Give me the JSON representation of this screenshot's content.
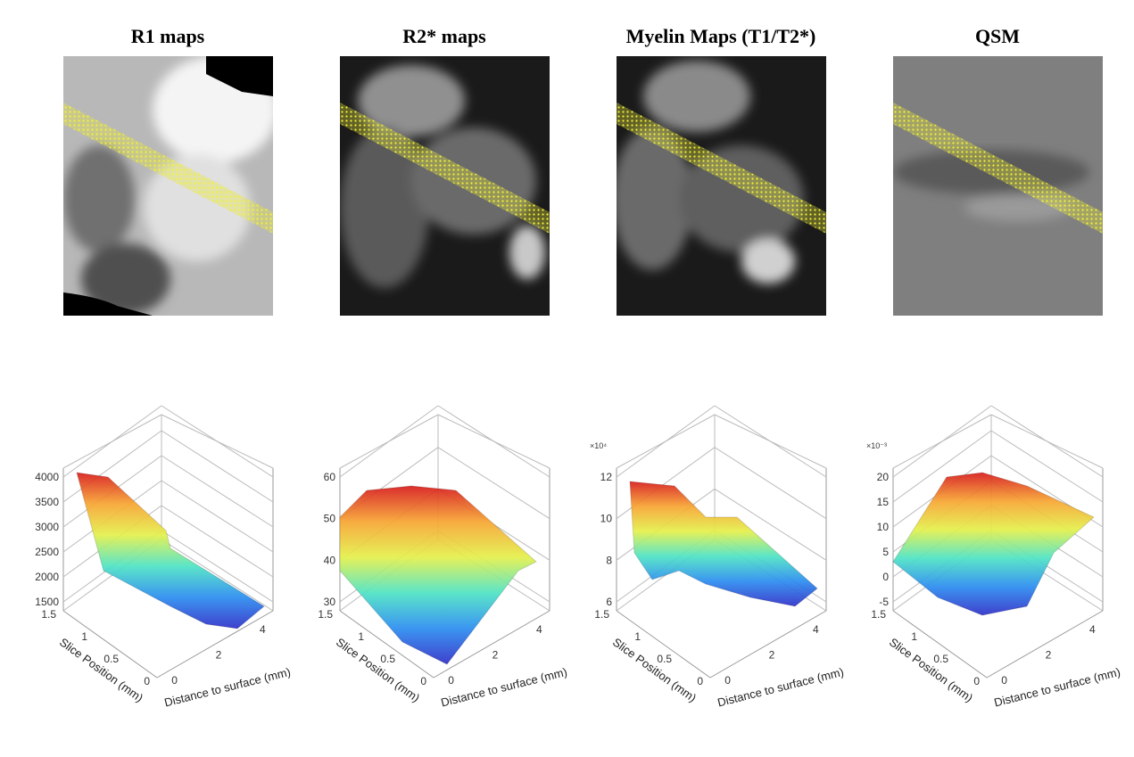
{
  "panels": [
    {
      "title": "R1 maps",
      "plot": {
        "zticks": [
          "4000",
          "3500",
          "3000",
          "2500",
          "2000",
          "1500"
        ],
        "exponent": null,
        "yticks": [
          "1.5",
          "1",
          "0.5",
          "0"
        ],
        "xticks": [
          "0",
          "2",
          "4"
        ],
        "ylabel": "Slice Position (mm)",
        "xlabel": "Distance to surface (mm)"
      }
    },
    {
      "title": "R2* maps",
      "plot": {
        "zticks": [
          "60",
          "50",
          "40",
          "30"
        ],
        "exponent": null,
        "yticks": [
          "1.5",
          "1",
          "0.5",
          "0"
        ],
        "xticks": [
          "0",
          "2",
          "4"
        ],
        "ylabel": "Slice Position (mm)",
        "xlabel": "Distance to surface (mm)"
      }
    },
    {
      "title": "Myelin Maps (T1/T2*)",
      "plot": {
        "zticks": [
          "12",
          "10",
          "8",
          "6"
        ],
        "exponent": "×10⁴",
        "yticks": [
          "1.5",
          "1",
          "0.5",
          "0"
        ],
        "xticks": [
          "0",
          "2",
          "4"
        ],
        "ylabel": "Slice Position (mm)",
        "xlabel": "Distance to surface (mm)"
      }
    },
    {
      "title": "QSM",
      "plot": {
        "zticks": [
          "20",
          "15",
          "10",
          "5",
          "0",
          "-5"
        ],
        "exponent": "×10⁻³",
        "yticks": [
          "1.5",
          "1",
          "0.5",
          "0"
        ],
        "xticks": [
          "0",
          "2",
          "4"
        ],
        "ylabel": "Slice Position (mm)",
        "xlabel": "Distance to surface (mm)"
      }
    }
  ]
}
